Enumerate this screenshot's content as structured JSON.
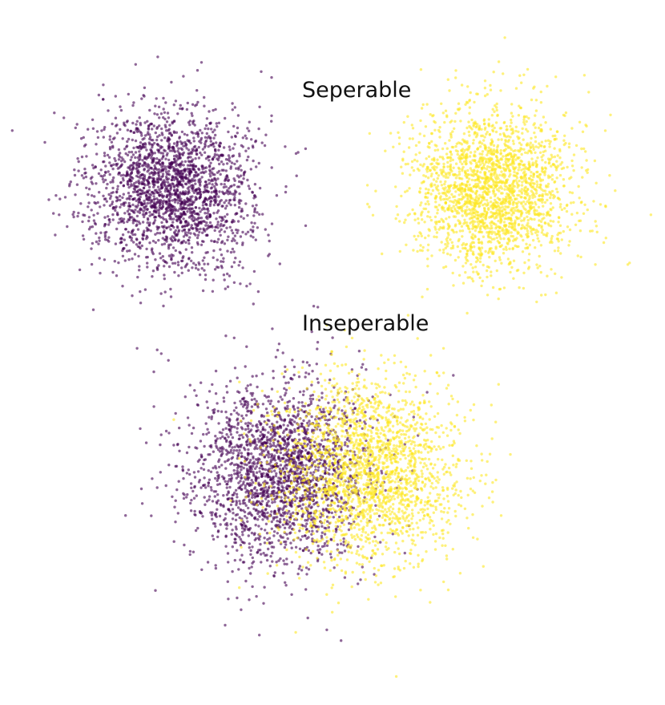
{
  "chart_data": [
    {
      "type": "scatter",
      "title": "Seperable",
      "xlabel": "",
      "ylabel": "",
      "axes_visible": false,
      "grid": false,
      "legend": "none",
      "series": [
        {
          "color": "#440154",
          "center": [
            -4.0,
            0.0
          ],
          "std": 1.0,
          "count": 5000
        },
        {
          "color": "#fde725",
          "center": [
            4.0,
            0.0
          ],
          "std": 1.0,
          "count": 5000
        }
      ]
    },
    {
      "type": "scatter",
      "title": "Inseperable",
      "xlabel": "",
      "ylabel": "",
      "axes_visible": false,
      "grid": false,
      "legend": "none",
      "series": [
        {
          "color": "#440154",
          "center": [
            -1.0,
            0.0
          ],
          "std": 1.0,
          "count": 5000
        },
        {
          "color": "#fde725",
          "center": [
            1.0,
            0.0
          ],
          "std": 1.0,
          "count": 5000
        }
      ]
    }
  ]
}
